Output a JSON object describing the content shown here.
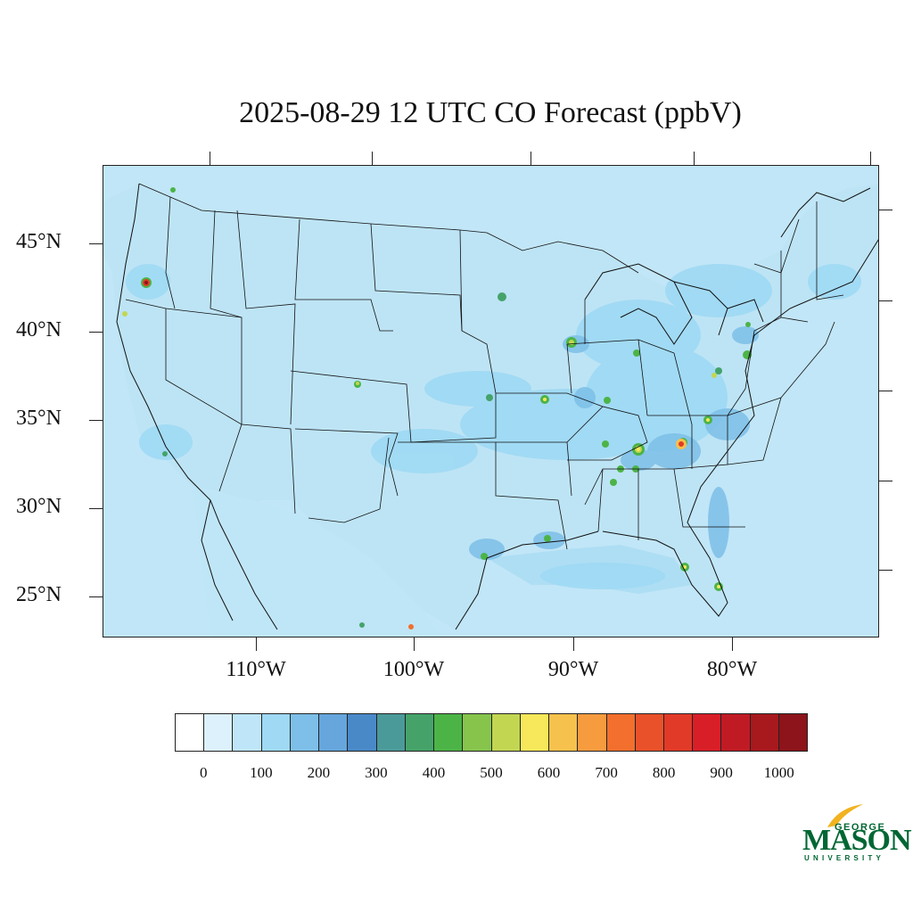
{
  "title": "2025-08-29 12 UTC CO Forecast (ppbV)",
  "map": {
    "latitude_labels": [
      "45°N",
      "40°N",
      "35°N",
      "30°N",
      "25°N"
    ],
    "longitude_labels": [
      "110°W",
      "100°W",
      "90°W",
      "80°W"
    ],
    "background_color": "#c1e6f7"
  },
  "colorbar": {
    "colors": [
      "#ffffff",
      "#dcf1fb",
      "#bfe6f8",
      "#9fd9f4",
      "#7dbfe8",
      "#66a6dc",
      "#4a89c8",
      "#4b9a9a",
      "#45a36a",
      "#4cb447",
      "#86c44c",
      "#c2d652",
      "#f7e75a",
      "#f6c14c",
      "#f79b3f",
      "#f26f2d",
      "#e8512a",
      "#e13a28",
      "#d81f28",
      "#c01b24",
      "#a8191e",
      "#8c141a"
    ],
    "labels": [
      "0",
      "100",
      "200",
      "300",
      "400",
      "500",
      "600",
      "700",
      "800",
      "900",
      "1000"
    ]
  },
  "logo": {
    "line1": "GEORGE",
    "line2": "MASON",
    "line3": "UNIVERSITY",
    "color": "#006633",
    "accent": "#f2b320"
  }
}
